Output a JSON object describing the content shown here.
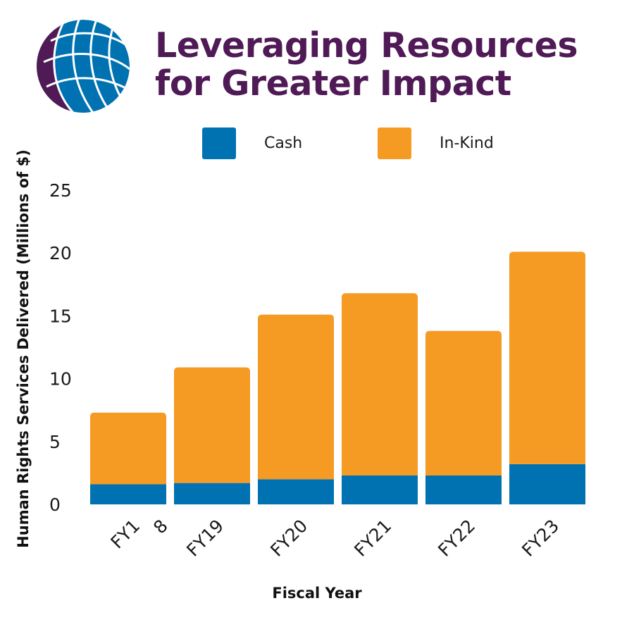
{
  "header": {
    "title_line1": "Leveraging Resources",
    "title_line2": "for Greater Impact"
  },
  "logo": {
    "icon": "globe-icon",
    "colors": [
      "#4f1a56",
      "#0072b1",
      "#ffffff"
    ]
  },
  "chart_data": {
    "type": "bar",
    "stacked": true,
    "categories": [
      "FY18",
      "FY19",
      "FY20",
      "FY21",
      "FY22",
      "FY23"
    ],
    "category_labels": [
      [
        "FY1",
        "8"
      ],
      [
        "FY19"
      ],
      [
        "FY20"
      ],
      [
        "FY21"
      ],
      [
        "FY22"
      ],
      [
        "FY23"
      ]
    ],
    "series": [
      {
        "name": "Cash",
        "color": "#0072b1",
        "values": [
          1.6,
          1.7,
          2.0,
          2.3,
          2.3,
          3.2
        ]
      },
      {
        "name": "In-Kind",
        "color": "#f59a23",
        "values": [
          5.7,
          9.2,
          13.1,
          14.5,
          11.5,
          16.9
        ]
      }
    ],
    "ylim": [
      0,
      25
    ],
    "yticks": [
      0,
      5,
      10,
      15,
      20,
      25
    ],
    "xlabel": "Fiscal Year",
    "ylabel": "Human Rights Services Delivered (Millions of $)",
    "legend": "top-center",
    "grid": false
  }
}
